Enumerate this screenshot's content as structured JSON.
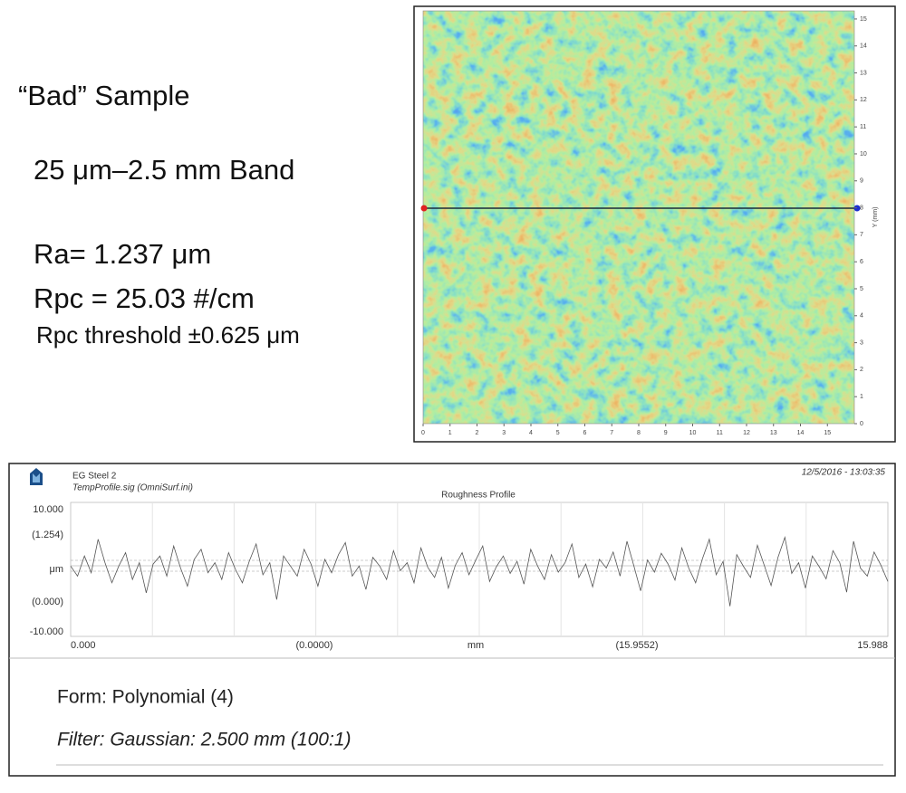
{
  "slide": {
    "title": "“Bad” Sample",
    "band": "25 μm–2.5 mm Band",
    "ra": "Ra= 1.237 μm",
    "rpc": "Rpc = 25.03 #/cm",
    "threshold": "Rpc threshold ±0.625 μm"
  },
  "heatmap": {
    "y_axis_label": "Y (mm)",
    "xlim": [
      0,
      16
    ],
    "ylim": [
      0,
      15.3
    ],
    "xticks": [
      0,
      1,
      2,
      3,
      4,
      5,
      6,
      7,
      8,
      9,
      10,
      11,
      12,
      13,
      14,
      15
    ],
    "yticks": [
      0,
      1,
      2,
      3,
      4,
      5,
      6,
      7,
      8,
      9,
      10,
      11,
      12,
      13,
      14,
      15
    ]
  },
  "profile": {
    "type": "line",
    "name": "EG Steel 2",
    "file": "TempProfile.sig  (OmniSurf.ini)",
    "date": "12/5/2016 - 13:03:35",
    "title": "Roughness Profile",
    "y_labels": [
      "10.000",
      "(1.254)",
      "μm",
      "(0.000)",
      "-10.000"
    ],
    "x_labels": [
      "0.000",
      "(0.0000)",
      "mm",
      "(15.9552)",
      "15.988"
    ],
    "xlim": [
      0,
      15.988
    ],
    "ylim": [
      -10,
      10
    ],
    "color": "#555555",
    "values": [
      0.5,
      -1,
      2,
      -0.5,
      4.5,
      1,
      -2,
      0.5,
      2.5,
      -1.5,
      1,
      -3.5,
      0.8,
      2,
      -1,
      3.5,
      0.2,
      -2.5,
      1.5,
      3,
      -0.5,
      1,
      -1.5,
      2.5,
      0,
      -2,
      1.2,
      3.8,
      -0.8,
      1,
      -4.5,
      2,
      0.5,
      -1,
      3,
      0.8,
      -2.5,
      1.5,
      -0.5,
      2.2,
      4,
      -1,
      0.5,
      -3,
      1.8,
      0.5,
      -1.5,
      2.8,
      -0.2,
      1,
      -2,
      3.2,
      0.3,
      -1.2,
      1.8,
      -2.8,
      0.6,
      2.5,
      -0.8,
      1.4,
      3.5,
      -1.8,
      0.4,
      2,
      -0.6,
      1.2,
      -2.2,
      3,
      0.5,
      -1.5,
      2.2,
      -0.4,
      1,
      3.8,
      -1.2,
      0.8,
      -2.6,
      1.5,
      0.2,
      2.6,
      -1,
      4.2,
      0.6,
      -3.2,
      1.4,
      -0.4,
      2.4,
      0.8,
      -1.6,
      3.2,
      0.2,
      -2,
      1.6,
      4.5,
      -0.8,
      1.2,
      -5.5,
      2.2,
      0.4,
      -1.2,
      3.6,
      0.6,
      -2.4,
      1.8,
      4.8,
      -0.6,
      1,
      -2.8,
      2,
      0.4,
      -1.4,
      2.8,
      1,
      -3.4,
      4.2,
      0.2,
      -1,
      2.6,
      0.6,
      -1.8
    ]
  },
  "form": "Form: Polynomial (4)",
  "filter": "Filter: Gaussian: 2.500 mm (100:1)"
}
